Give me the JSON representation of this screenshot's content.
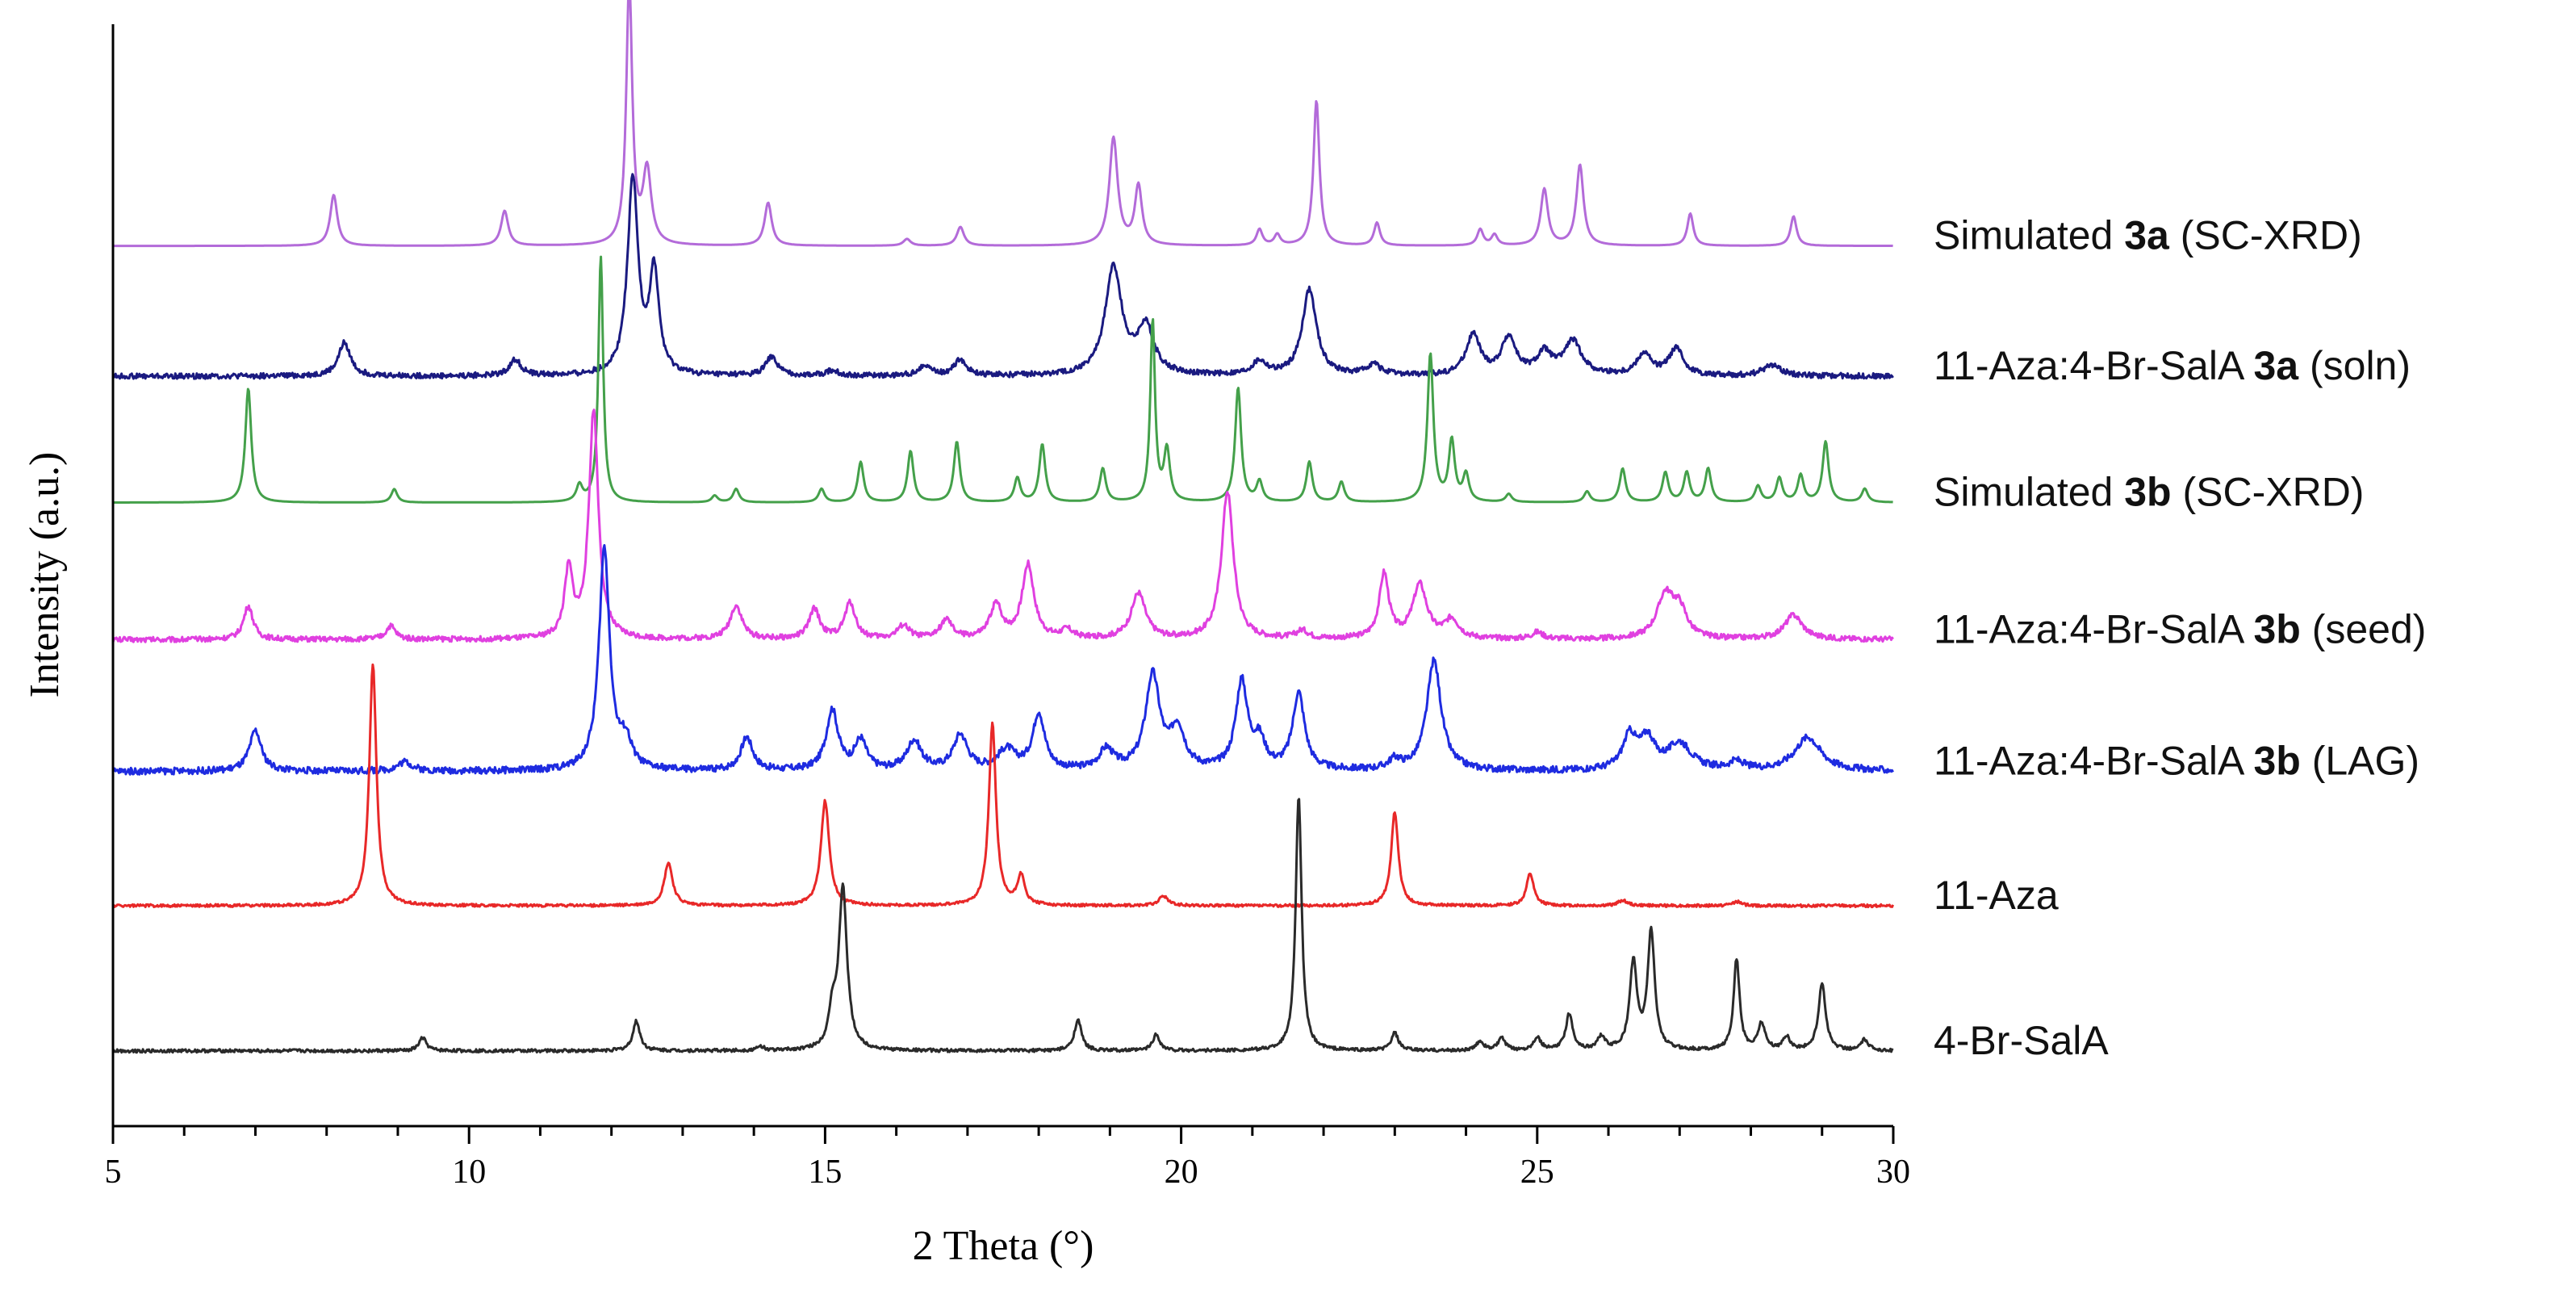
{
  "chart_data": {
    "type": "line",
    "title": "",
    "xlabel": "2 Theta (°)",
    "ylabel": "Intensity (a.u.)",
    "xlim": [
      5,
      30
    ],
    "xticks": [
      5,
      10,
      15,
      20,
      25,
      30
    ],
    "ylim": [
      0,
      8.2
    ],
    "grid": false,
    "legend_placement": "right, inline with each trace",
    "series": [
      {
        "name": "Simulated 3a (SC-XRD)",
        "label_pre": "Simulated ",
        "label_bold": "3a",
        "label_post": " (SC-XRD)",
        "color": "#b36bd9",
        "baseline": 6.55,
        "noise": 0.0,
        "peaks": [
          [
            8.1,
            0.38,
            0.06
          ],
          [
            10.5,
            0.26,
            0.06
          ],
          [
            12.25,
            1.95,
            0.05
          ],
          [
            12.5,
            0.55,
            0.07
          ],
          [
            14.2,
            0.32,
            0.06
          ],
          [
            16.15,
            0.05,
            0.06
          ],
          [
            16.9,
            0.14,
            0.06
          ],
          [
            19.05,
            0.8,
            0.07
          ],
          [
            19.4,
            0.44,
            0.06
          ],
          [
            21.1,
            0.12,
            0.05
          ],
          [
            21.35,
            0.08,
            0.05
          ],
          [
            21.9,
            1.08,
            0.05
          ],
          [
            22.75,
            0.17,
            0.05
          ],
          [
            24.2,
            0.12,
            0.05
          ],
          [
            24.4,
            0.08,
            0.05
          ],
          [
            25.1,
            0.42,
            0.06
          ],
          [
            25.6,
            0.6,
            0.06
          ],
          [
            27.15,
            0.24,
            0.05
          ],
          [
            28.6,
            0.22,
            0.05
          ]
        ]
      },
      {
        "name": "11-Aza:4-Br-SalA 3a (soln)",
        "label_pre": "11-Aza:4-Br-SalA ",
        "label_bold": "3a",
        "label_post": " (soln)",
        "color": "#1a1a80",
        "baseline": 5.58,
        "noise": 0.02,
        "peaks": [
          [
            8.25,
            0.25,
            0.1
          ],
          [
            10.65,
            0.12,
            0.1
          ],
          [
            12.3,
            1.45,
            0.09
          ],
          [
            12.6,
            0.75,
            0.08
          ],
          [
            14.25,
            0.14,
            0.1
          ],
          [
            15.1,
            0.04,
            0.1
          ],
          [
            16.4,
            0.08,
            0.1
          ],
          [
            16.9,
            0.12,
            0.1
          ],
          [
            19.05,
            0.8,
            0.14
          ],
          [
            19.5,
            0.35,
            0.14
          ],
          [
            21.1,
            0.1,
            0.12
          ],
          [
            21.8,
            0.64,
            0.12
          ],
          [
            22.7,
            0.08,
            0.12
          ],
          [
            24.1,
            0.3,
            0.12
          ],
          [
            24.6,
            0.28,
            0.12
          ],
          [
            25.1,
            0.16,
            0.12
          ],
          [
            25.5,
            0.25,
            0.15
          ],
          [
            26.5,
            0.16,
            0.12
          ],
          [
            26.95,
            0.2,
            0.12
          ],
          [
            28.3,
            0.08,
            0.15
          ]
        ]
      },
      {
        "name": "Simulated 3b (SC-XRD)",
        "label_pre": "Simulated ",
        "label_bold": "3b",
        "label_post": " (SC-XRD)",
        "color": "#44a04a",
        "baseline": 4.64,
        "noise": 0.0,
        "peaks": [
          [
            6.9,
            0.85,
            0.05
          ],
          [
            8.95,
            0.1,
            0.05
          ],
          [
            11.55,
            0.12,
            0.05
          ],
          [
            11.85,
            1.83,
            0.04
          ],
          [
            13.45,
            0.05,
            0.05
          ],
          [
            13.75,
            0.1,
            0.05
          ],
          [
            14.95,
            0.1,
            0.05
          ],
          [
            15.5,
            0.3,
            0.05
          ],
          [
            16.2,
            0.38,
            0.05
          ],
          [
            16.85,
            0.45,
            0.05
          ],
          [
            17.7,
            0.18,
            0.05
          ],
          [
            18.05,
            0.43,
            0.05
          ],
          [
            18.9,
            0.25,
            0.05
          ],
          [
            19.6,
            1.35,
            0.04
          ],
          [
            19.8,
            0.38,
            0.05
          ],
          [
            20.8,
            0.85,
            0.05
          ],
          [
            21.1,
            0.15,
            0.05
          ],
          [
            21.8,
            0.3,
            0.05
          ],
          [
            22.25,
            0.15,
            0.05
          ],
          [
            23.5,
            1.1,
            0.05
          ],
          [
            23.8,
            0.45,
            0.05
          ],
          [
            24.0,
            0.2,
            0.05
          ],
          [
            24.6,
            0.06,
            0.05
          ],
          [
            25.7,
            0.08,
            0.05
          ],
          [
            26.2,
            0.25,
            0.05
          ],
          [
            26.8,
            0.22,
            0.05
          ],
          [
            27.1,
            0.22,
            0.05
          ],
          [
            27.4,
            0.25,
            0.05
          ],
          [
            28.1,
            0.12,
            0.05
          ],
          [
            28.4,
            0.18,
            0.05
          ],
          [
            28.7,
            0.2,
            0.05
          ],
          [
            29.05,
            0.45,
            0.05
          ],
          [
            29.6,
            0.1,
            0.05
          ]
        ]
      },
      {
        "name": "11-Aza:4-Br-SalA 3b (seed)",
        "label_pre": "11-Aza:4-Br-SalA ",
        "label_bold": "3b",
        "label_post": " (seed)",
        "color": "#e040e0",
        "baseline": 3.62,
        "noise": 0.02,
        "peaks": [
          [
            6.9,
            0.25,
            0.08
          ],
          [
            8.9,
            0.1,
            0.08
          ],
          [
            11.4,
            0.5,
            0.07
          ],
          [
            11.75,
            1.7,
            0.08
          ],
          [
            13.75,
            0.25,
            0.1
          ],
          [
            14.85,
            0.22,
            0.09
          ],
          [
            15.35,
            0.27,
            0.09
          ],
          [
            16.1,
            0.1,
            0.1
          ],
          [
            16.7,
            0.14,
            0.1
          ],
          [
            17.4,
            0.25,
            0.1
          ],
          [
            17.85,
            0.55,
            0.1
          ],
          [
            18.4,
            0.06,
            0.1
          ],
          [
            19.4,
            0.34,
            0.12
          ],
          [
            20.65,
            1.1,
            0.1
          ],
          [
            21.7,
            0.06,
            0.1
          ],
          [
            22.85,
            0.48,
            0.08
          ],
          [
            23.35,
            0.4,
            0.12
          ],
          [
            23.8,
            0.14,
            0.12
          ],
          [
            25.0,
            0.05,
            0.1
          ],
          [
            26.8,
            0.32,
            0.14
          ],
          [
            27.0,
            0.2,
            0.12
          ],
          [
            28.6,
            0.18,
            0.15
          ]
        ]
      },
      {
        "name": "11-Aza:4-Br-SalA 3b (LAG)",
        "label_pre": "11-Aza:4-Br-SalA ",
        "label_bold": "3b",
        "label_post": " (LAG)",
        "color": "#1e2be0",
        "baseline": 2.64,
        "noise": 0.025,
        "peaks": [
          [
            7.0,
            0.3,
            0.1
          ],
          [
            9.1,
            0.07,
            0.12
          ],
          [
            11.9,
            1.65,
            0.09
          ],
          [
            12.2,
            0.2,
            0.1
          ],
          [
            13.9,
            0.25,
            0.1
          ],
          [
            15.1,
            0.45,
            0.1
          ],
          [
            15.5,
            0.22,
            0.1
          ],
          [
            16.25,
            0.22,
            0.12
          ],
          [
            16.9,
            0.26,
            0.12
          ],
          [
            17.55,
            0.15,
            0.15
          ],
          [
            18.0,
            0.42,
            0.1
          ],
          [
            18.95,
            0.15,
            0.12
          ],
          [
            19.6,
            0.7,
            0.12
          ],
          [
            19.95,
            0.3,
            0.12
          ],
          [
            20.85,
            0.65,
            0.1
          ],
          [
            21.1,
            0.2,
            0.1
          ],
          [
            21.65,
            0.57,
            0.1
          ],
          [
            23.0,
            0.07,
            0.1
          ],
          [
            23.55,
            0.82,
            0.12
          ],
          [
            26.3,
            0.25,
            0.12
          ],
          [
            26.55,
            0.22,
            0.12
          ],
          [
            27.0,
            0.2,
            0.2
          ],
          [
            27.8,
            0.06,
            0.12
          ],
          [
            28.8,
            0.25,
            0.22
          ]
        ]
      },
      {
        "name": "11-Aza",
        "label_pre": "11-Aza",
        "label_bold": "",
        "label_post": "",
        "color": "#e82828",
        "baseline": 1.64,
        "noise": 0.01,
        "peaks": [
          [
            8.65,
            1.8,
            0.06
          ],
          [
            12.8,
            0.32,
            0.07
          ],
          [
            15.0,
            0.78,
            0.07
          ],
          [
            17.35,
            1.35,
            0.06
          ],
          [
            17.75,
            0.22,
            0.06
          ],
          [
            19.75,
            0.07,
            0.08
          ],
          [
            23.0,
            0.7,
            0.06
          ],
          [
            24.9,
            0.24,
            0.06
          ],
          [
            26.2,
            0.04,
            0.08
          ],
          [
            27.8,
            0.03,
            0.08
          ]
        ]
      },
      {
        "name": "4-Br-SalA",
        "label_pre": "4-Br-SalA",
        "label_bold": "",
        "label_post": "",
        "color": "#2a2a2a",
        "baseline": 0.56,
        "noise": 0.012,
        "peaks": [
          [
            9.35,
            0.1,
            0.06
          ],
          [
            12.35,
            0.22,
            0.06
          ],
          [
            14.1,
            0.03,
            0.06
          ],
          [
            15.25,
            1.2,
            0.07
          ],
          [
            15.1,
            0.25,
            0.06
          ],
          [
            18.55,
            0.23,
            0.06
          ],
          [
            19.65,
            0.12,
            0.06
          ],
          [
            21.65,
            1.9,
            0.05
          ],
          [
            23.0,
            0.13,
            0.06
          ],
          [
            24.2,
            0.07,
            0.06
          ],
          [
            24.5,
            0.09,
            0.06
          ],
          [
            25.0,
            0.1,
            0.06
          ],
          [
            25.45,
            0.27,
            0.06
          ],
          [
            25.9,
            0.1,
            0.06
          ],
          [
            26.35,
            0.65,
            0.06
          ],
          [
            26.6,
            0.88,
            0.06
          ],
          [
            27.8,
            0.68,
            0.05
          ],
          [
            28.15,
            0.2,
            0.06
          ],
          [
            28.5,
            0.1,
            0.06
          ],
          [
            29.0,
            0.5,
            0.06
          ],
          [
            29.6,
            0.08,
            0.06
          ]
        ]
      }
    ]
  }
}
